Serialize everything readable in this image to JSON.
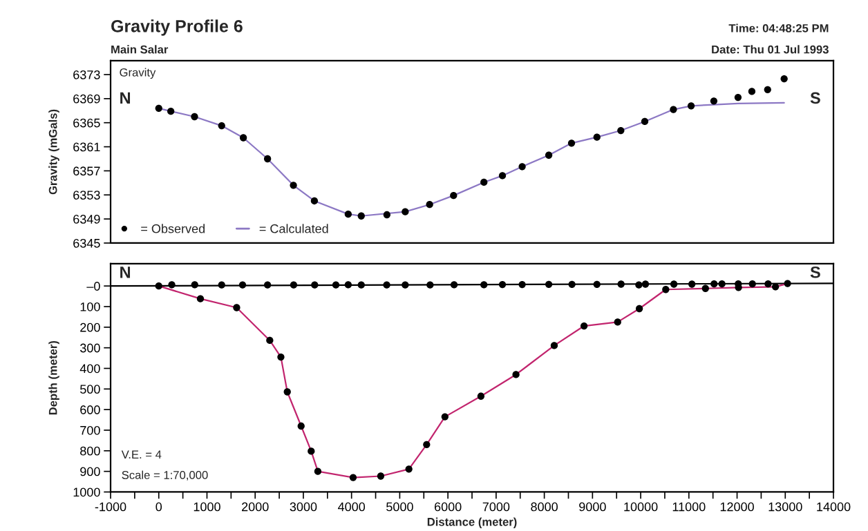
{
  "chart_data": [
    {
      "type": "line",
      "title": "Gravity Profile 6",
      "subtitle": "Main Salar",
      "ylabel": "Gravity (mGals)",
      "annotations": [
        "Time: 04:48:25 PM",
        "Date: Thu 01 Jul 1993",
        "Gravity",
        "N",
        "S"
      ],
      "xlim": [
        -1000,
        14000
      ],
      "ylim": [
        6345,
        6375.3
      ],
      "yticks": [
        6345,
        6349,
        6353,
        6357,
        6361,
        6365,
        6369,
        6373
      ],
      "tick_labels": "y",
      "grid": false,
      "legend": "bottom left",
      "series": [
        {
          "name": "= Observed",
          "type": "scatter",
          "color": "#000000",
          "marker": "circle",
          "x": [
            0,
            250,
            742,
            1305,
            1755,
            2257,
            2794,
            3229,
            3931,
            4202,
            4734,
            5114,
            5620,
            6117,
            6747,
            7131,
            7541,
            8093,
            8565,
            9092,
            9588,
            10085,
            10679,
            11047,
            11518,
            12020,
            12307,
            12634,
            12977
          ],
          "values": [
            6367.4,
            6366.9,
            6366.0,
            6364.5,
            6362.5,
            6359.0,
            6354.6,
            6352.0,
            6349.8,
            6349.5,
            6349.7,
            6350.2,
            6351.4,
            6352.9,
            6355.1,
            6356.2,
            6357.7,
            6359.6,
            6361.6,
            6362.6,
            6363.7,
            6365.2,
            6367.2,
            6367.8,
            6368.6,
            6369.2,
            6370.2,
            6370.5,
            6372.3
          ]
        },
        {
          "name": "= Calculated",
          "color": "#8c78c4",
          "marker": "none",
          "x": [
            0,
            250,
            742,
            1305,
            1755,
            2257,
            2794,
            3229,
            3931,
            4202,
            5114,
            5620,
            6117,
            6747,
            7131,
            7541,
            8093,
            8565,
            9092,
            9588,
            10085,
            10679,
            11047,
            11518,
            12020,
            12977
          ],
          "values": [
            6367.4,
            6366.9,
            6366.0,
            6364.5,
            6362.5,
            6359.0,
            6354.6,
            6352.0,
            6349.8,
            6349.5,
            6350.2,
            6351.4,
            6352.9,
            6355.1,
            6356.2,
            6357.7,
            6359.6,
            6361.6,
            6362.6,
            6363.7,
            6365.2,
            6367.2,
            6367.8,
            6368.0,
            6368.2,
            6368.3
          ]
        }
      ]
    },
    {
      "type": "line",
      "xlabel": "Distance (meter)",
      "ylabel": "Depth (meter)",
      "annotations": [
        "N",
        "S",
        "V.E. = 4",
        "Scale = 1:70,000"
      ],
      "xlim": [
        -1000,
        14000
      ],
      "ylim": [
        1000,
        -108
      ],
      "xticks": [
        -1000,
        {
          "value": -500,
          "label": null
        },
        0,
        {
          "value": 500,
          "label": null
        },
        1000,
        {
          "value": 1500,
          "label": null
        },
        2000,
        {
          "value": 2500,
          "label": null
        },
        3000,
        {
          "value": 3500,
          "label": null
        },
        4000,
        {
          "value": 4500,
          "label": null
        },
        5000,
        {
          "value": 5500,
          "label": null
        },
        6000,
        {
          "value": 6500,
          "label": null
        },
        7000,
        {
          "value": 7500,
          "label": null
        },
        8000,
        {
          "value": 8500,
          "label": null
        },
        9000,
        {
          "value": 9500,
          "label": null
        },
        10000,
        {
          "value": 10500,
          "label": null
        },
        11000,
        {
          "value": 11500,
          "label": null
        },
        12000,
        {
          "value": 12500,
          "label": null
        },
        13000,
        {
          "value": 13500,
          "label": null
        },
        14000
      ],
      "yticks": [
        {
          "value": 0,
          "label": "–0"
        },
        100,
        200,
        300,
        400,
        500,
        600,
        700,
        800,
        900,
        1000
      ],
      "grid": false,
      "series": [
        {
          "color": "#000000",
          "marker": "none",
          "x": [
            -1000,
            14000
          ],
          "values": [
            0,
            -13
          ]
        },
        {
          "type": "scatter",
          "color": "#000000",
          "marker": "circle",
          "x": [
            270,
            746,
            1305,
            1739,
            2257,
            2799,
            3235,
            3675,
            3931,
            4202,
            4730,
            5114,
            5630,
            6128,
            6747,
            7131,
            7541,
            8093,
            8574,
            9092,
            9593,
            9962,
            10099,
            10689,
            11063,
            11523,
            11686,
            12025,
            12318,
            12644
          ],
          "values": [
            -6,
            -6,
            -5,
            -5,
            -5,
            -5,
            -5,
            -5,
            -6,
            -5,
            -5,
            -5,
            -5,
            -6,
            -6,
            -7,
            -7,
            -8,
            -8,
            -8,
            -9,
            -5,
            -9,
            -9,
            -9,
            -10,
            -10,
            -10,
            -10,
            -10
          ]
        },
        {
          "color": "#c2256e",
          "marker": "circle",
          "x": [
            0,
            864,
            1616,
            2303,
            2534,
            2667,
            2954,
            3163,
            3301,
            4033,
            4606,
            5190,
            5558,
            5938,
            6685,
            7412,
            8206,
            8825,
            9522,
            9972,
            10520,
            11344,
            12030,
            12797,
            13048
          ],
          "values": [
            0,
            62,
            105,
            264,
            345,
            514,
            680,
            802,
            900,
            930,
            923,
            889,
            770,
            635,
            535,
            430,
            289,
            194,
            175,
            110,
            17,
            12,
            7,
            4,
            -12
          ]
        }
      ]
    }
  ]
}
